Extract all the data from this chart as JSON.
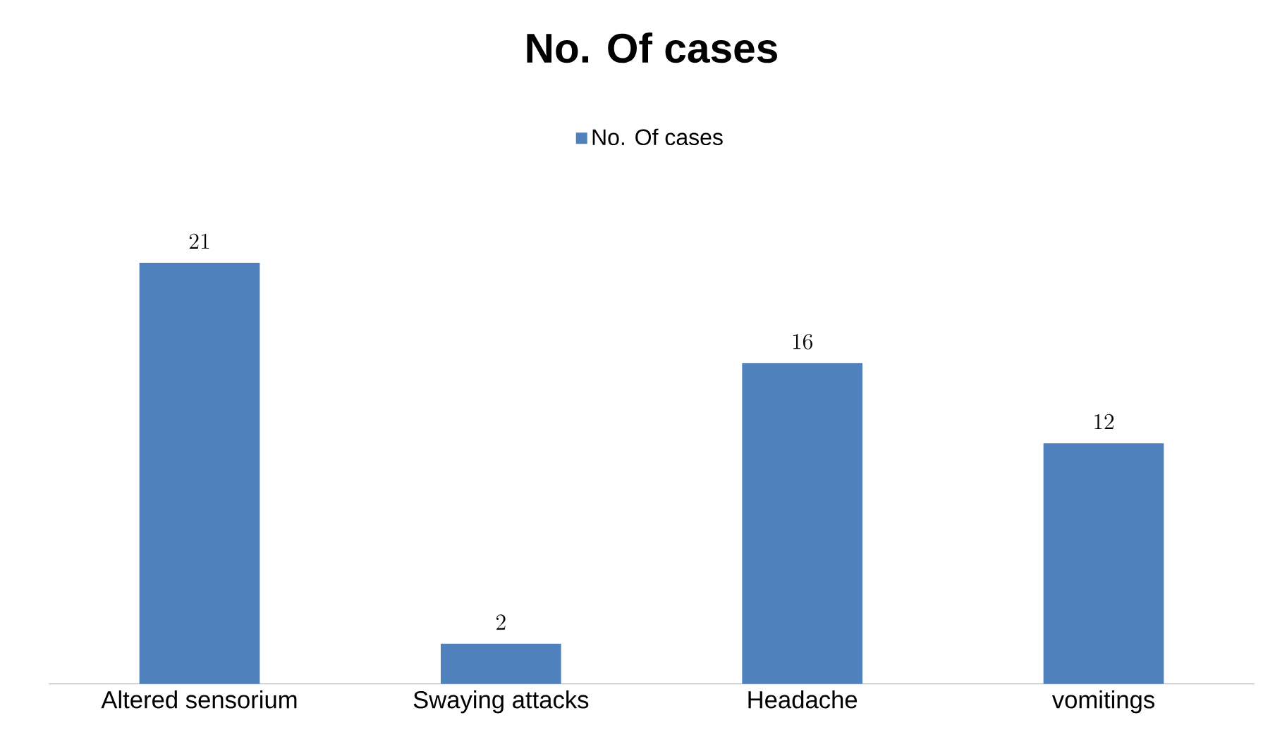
{
  "chart_data": {
    "type": "bar",
    "title": "No. Of cases",
    "categories": [
      "Altered sensorium",
      "Swaying attacks",
      "Headache",
      "vomitings"
    ],
    "series": [
      {
        "name": "No. Of cases",
        "color": "#4f81bd",
        "values": [
          21,
          2,
          16,
          12
        ]
      }
    ],
    "data_labels": true,
    "legend": "top"
  }
}
